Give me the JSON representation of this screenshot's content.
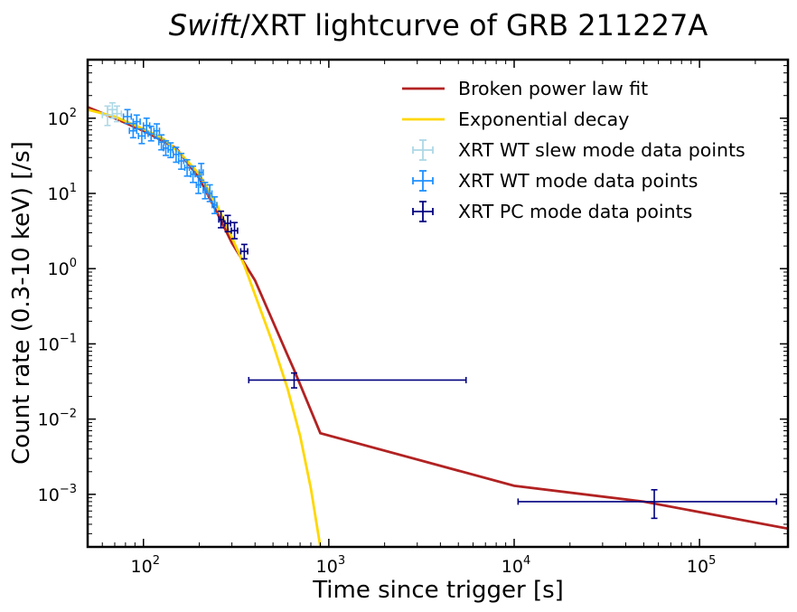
{
  "chart_data": {
    "type": "scatter",
    "title_italic": "Swift",
    "title_rest": "/XRT lightcurve of GRB 211227A",
    "xlabel": "Time since trigger [s]",
    "ylabel": "Count rate (0.3-10 keV) [/s]",
    "xscale": "log",
    "yscale": "log",
    "xlim": [
      50,
      300000
    ],
    "ylim": [
      0.0002,
      600
    ],
    "xticks": [
      {
        "value": 100,
        "base": "10",
        "exp": "2"
      },
      {
        "value": 1000,
        "base": "10",
        "exp": "3"
      },
      {
        "value": 10000,
        "base": "10",
        "exp": "4"
      },
      {
        "value": 100000,
        "base": "10",
        "exp": "5"
      }
    ],
    "yticks": [
      {
        "value": 0.001,
        "base": "10",
        "exp": "−3"
      },
      {
        "value": 0.01,
        "base": "10",
        "exp": "−2"
      },
      {
        "value": 0.1,
        "base": "10",
        "exp": "−1"
      },
      {
        "value": 1,
        "base": "10",
        "exp": "0"
      },
      {
        "value": 10,
        "base": "10",
        "exp": "1"
      },
      {
        "value": 100,
        "base": "10",
        "exp": "2"
      }
    ],
    "legend_position": "top-right",
    "lines": [
      {
        "name": "Broken power law fit",
        "color": "#b22222",
        "points": [
          [
            50,
            140
          ],
          [
            70,
            100
          ],
          [
            100,
            68
          ],
          [
            150,
            40
          ],
          [
            200,
            16
          ],
          [
            250,
            5.5
          ],
          [
            300,
            2.2
          ],
          [
            400,
            0.7
          ],
          [
            600,
            0.07
          ],
          [
            650,
            0.045
          ],
          [
            900,
            0.0065
          ],
          [
            10000,
            0.0013
          ],
          [
            50000,
            0.0008
          ],
          [
            300000,
            0.00035
          ]
        ]
      },
      {
        "name": "Exponential decay",
        "color": "#ffd700",
        "points": [
          [
            50,
            130
          ],
          [
            70,
            105
          ],
          [
            100,
            72
          ],
          [
            130,
            52
          ],
          [
            160,
            33
          ],
          [
            200,
            18
          ],
          [
            250,
            6.8
          ],
          [
            300,
            2.6
          ],
          [
            350,
            1.1
          ],
          [
            400,
            0.45
          ],
          [
            500,
            0.1
          ],
          [
            600,
            0.025
          ],
          [
            700,
            0.006
          ],
          [
            800,
            0.0012
          ],
          [
            900,
            0.0002
          ]
        ]
      }
    ],
    "series": [
      {
        "name": "XRT WT slew mode data points",
        "color": "#add8e6",
        "points": [
          {
            "x": 64,
            "y": 110,
            "xlo": 60,
            "xhi": 68,
            "ylo": 80,
            "yhi": 145
          },
          {
            "x": 68,
            "y": 130,
            "xlo": 64,
            "xhi": 72,
            "ylo": 100,
            "yhi": 160
          },
          {
            "x": 72,
            "y": 115,
            "xlo": 68,
            "xhi": 76,
            "ylo": 90,
            "yhi": 145
          }
        ]
      },
      {
        "name": "XRT WT mode data points",
        "color": "#1e90ff",
        "points": [
          {
            "x": 82,
            "y": 105,
            "xlo": 78,
            "xhi": 86,
            "ylo": 85,
            "yhi": 130
          },
          {
            "x": 88,
            "y": 68,
            "xlo": 84,
            "xhi": 92,
            "ylo": 55,
            "yhi": 85
          },
          {
            "x": 92,
            "y": 90,
            "xlo": 88,
            "xhi": 96,
            "ylo": 72,
            "yhi": 110
          },
          {
            "x": 98,
            "y": 58,
            "xlo": 94,
            "xhi": 102,
            "ylo": 46,
            "yhi": 72
          },
          {
            "x": 104,
            "y": 80,
            "xlo": 100,
            "xhi": 108,
            "ylo": 64,
            "yhi": 100
          },
          {
            "x": 110,
            "y": 62,
            "xlo": 106,
            "xhi": 114,
            "ylo": 50,
            "yhi": 78
          },
          {
            "x": 118,
            "y": 68,
            "xlo": 114,
            "xhi": 122,
            "ylo": 54,
            "yhi": 84
          },
          {
            "x": 125,
            "y": 48,
            "xlo": 121,
            "xhi": 129,
            "ylo": 38,
            "yhi": 60
          },
          {
            "x": 132,
            "y": 40,
            "xlo": 128,
            "xhi": 136,
            "ylo": 32,
            "yhi": 50
          },
          {
            "x": 140,
            "y": 38,
            "xlo": 136,
            "xhi": 144,
            "ylo": 30,
            "yhi": 47
          },
          {
            "x": 150,
            "y": 33,
            "xlo": 145,
            "xhi": 155,
            "ylo": 26,
            "yhi": 41
          },
          {
            "x": 160,
            "y": 27,
            "xlo": 155,
            "xhi": 165,
            "ylo": 21,
            "yhi": 34
          },
          {
            "x": 172,
            "y": 22,
            "xlo": 167,
            "xhi": 177,
            "ylo": 17,
            "yhi": 28
          },
          {
            "x": 185,
            "y": 18,
            "xlo": 180,
            "xhi": 190,
            "ylo": 14,
            "yhi": 23
          },
          {
            "x": 198,
            "y": 13,
            "xlo": 193,
            "xhi": 203,
            "ylo": 10,
            "yhi": 17
          },
          {
            "x": 205,
            "y": 19,
            "xlo": 200,
            "xhi": 210,
            "ylo": 15,
            "yhi": 25
          },
          {
            "x": 215,
            "y": 11,
            "xlo": 210,
            "xhi": 220,
            "ylo": 8.5,
            "yhi": 14
          },
          {
            "x": 228,
            "y": 10,
            "xlo": 222,
            "xhi": 234,
            "ylo": 7.8,
            "yhi": 13
          },
          {
            "x": 242,
            "y": 7,
            "xlo": 235,
            "xhi": 249,
            "ylo": 5.4,
            "yhi": 9
          }
        ]
      },
      {
        "name": "XRT PC mode data points",
        "color": "#000080",
        "points": [
          {
            "x": 262,
            "y": 4.5,
            "xlo": 255,
            "xhi": 270,
            "ylo": 3.5,
            "yhi": 5.8
          },
          {
            "x": 285,
            "y": 4.0,
            "xlo": 275,
            "xhi": 295,
            "ylo": 3.1,
            "yhi": 5.1
          },
          {
            "x": 310,
            "y": 3.2,
            "xlo": 298,
            "xhi": 322,
            "ylo": 2.5,
            "yhi": 4.1
          },
          {
            "x": 350,
            "y": 1.7,
            "xlo": 335,
            "xhi": 365,
            "ylo": 1.35,
            "yhi": 2.1
          },
          {
            "x": 650,
            "y": 0.033,
            "xlo": 370,
            "xhi": 5500,
            "ylo": 0.026,
            "yhi": 0.041
          },
          {
            "x": 57000,
            "y": 0.0008,
            "xlo": 10500,
            "xhi": 260000,
            "ylo": 0.00048,
            "yhi": 0.00115
          }
        ]
      }
    ]
  }
}
